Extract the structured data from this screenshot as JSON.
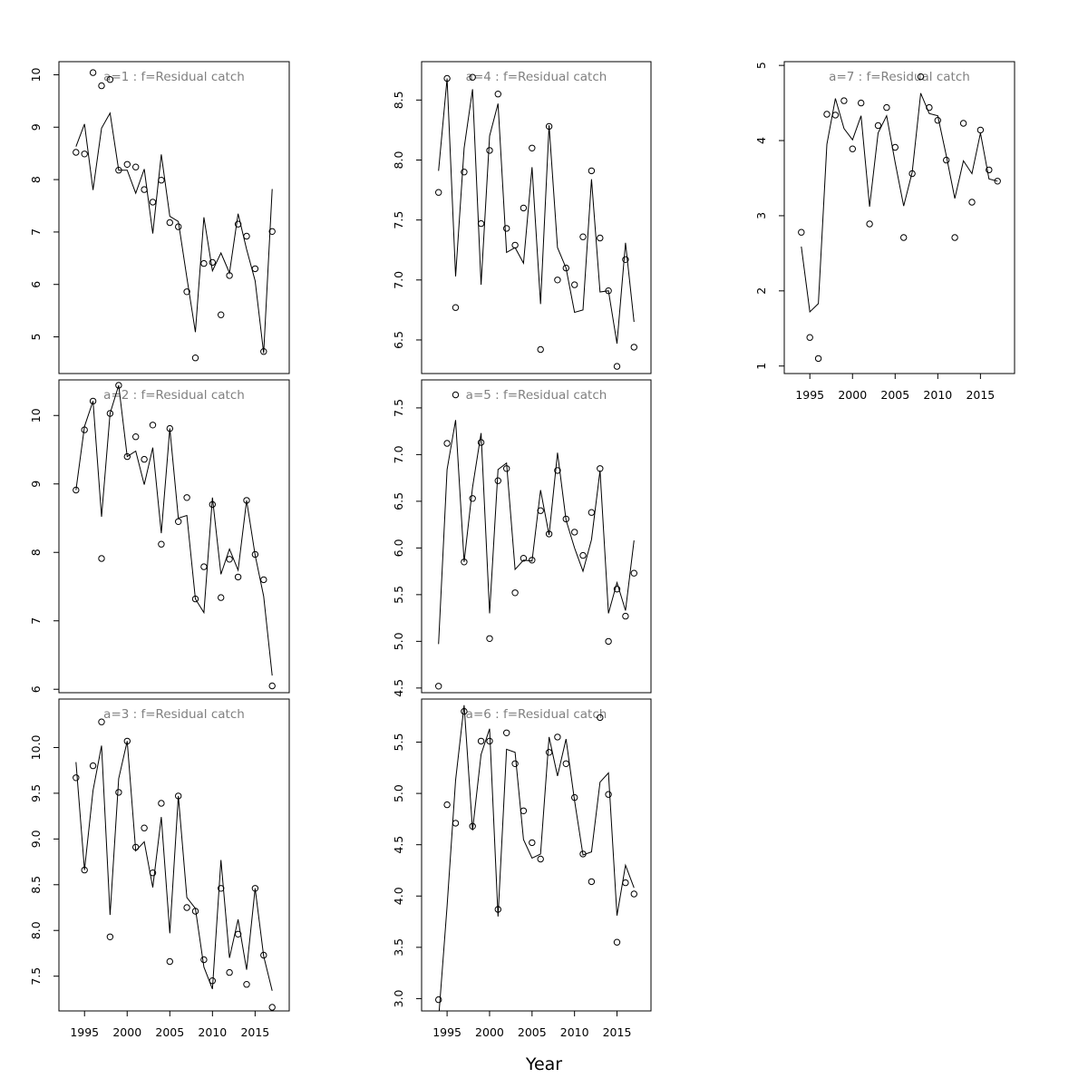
{
  "figure": {
    "xlabel": "Year",
    "colors": {
      "title": "#808080",
      "ink": "#000000",
      "background": "#ffffff"
    }
  },
  "chart_data": [
    {
      "type": "scatter+line",
      "title": "a=1  :  f=Residual catch",
      "x": [
        1994,
        1995,
        1996,
        1997,
        1998,
        1999,
        2000,
        2001,
        2002,
        2003,
        2004,
        2005,
        2006,
        2007,
        2008,
        2009,
        2010,
        2011,
        2012,
        2013,
        2014,
        2015,
        2016,
        2017
      ],
      "observed": [
        8.52,
        8.49,
        10.04,
        9.79,
        9.91,
        8.18,
        8.29,
        8.24,
        7.81,
        7.57,
        7.99,
        7.18,
        7.1,
        5.86,
        4.6,
        6.4,
        6.42,
        5.42,
        6.17,
        7.15,
        6.92,
        6.3,
        4.72,
        7.01
      ],
      "fitted": [
        8.63,
        9.06,
        7.8,
        8.98,
        9.27,
        8.18,
        8.18,
        7.74,
        8.2,
        6.97,
        8.48,
        7.3,
        7.2,
        6.13,
        5.09,
        7.28,
        6.26,
        6.6,
        6.22,
        7.35,
        6.67,
        6.07,
        4.69,
        7.82
      ],
      "ylim": [
        4.3,
        10.25
      ],
      "yticks": [
        5,
        6,
        7,
        8,
        9,
        10
      ],
      "show_xaxis": false
    },
    {
      "type": "scatter+line",
      "title": "a=2  :  f=Residual catch",
      "x": [
        1994,
        1995,
        1996,
        1997,
        1998,
        1999,
        2000,
        2001,
        2002,
        2003,
        2004,
        2005,
        2006,
        2007,
        2008,
        2009,
        2010,
        2011,
        2012,
        2013,
        2014,
        2015,
        2016,
        2017
      ],
      "observed": [
        8.91,
        9.79,
        10.21,
        7.91,
        10.03,
        10.44,
        9.4,
        9.69,
        9.36,
        9.86,
        8.12,
        9.81,
        8.45,
        8.8,
        7.32,
        7.79,
        8.7,
        7.34,
        7.9,
        7.64,
        8.76,
        7.97,
        7.6,
        6.05
      ],
      "fitted": [
        8.91,
        9.84,
        10.21,
        8.52,
        10.03,
        10.44,
        9.4,
        9.48,
        8.99,
        9.53,
        8.28,
        9.81,
        8.5,
        8.54,
        7.32,
        7.12,
        8.8,
        7.68,
        8.05,
        7.74,
        8.76,
        7.96,
        7.36,
        6.2
      ],
      "ylim": [
        5.95,
        10.52
      ],
      "yticks": [
        6,
        7,
        8,
        9,
        10
      ],
      "show_xaxis": false
    },
    {
      "type": "scatter+line",
      "title": "a=3  :  f=Residual catch",
      "x": [
        1994,
        1995,
        1996,
        1997,
        1998,
        1999,
        2000,
        2001,
        2002,
        2003,
        2004,
        2005,
        2006,
        2007,
        2008,
        2009,
        2010,
        2011,
        2012,
        2013,
        2014,
        2015,
        2016,
        2017
      ],
      "observed": [
        9.67,
        8.66,
        9.8,
        10.28,
        7.93,
        9.51,
        10.07,
        8.91,
        9.12,
        8.63,
        9.39,
        7.66,
        9.47,
        8.25,
        8.21,
        7.68,
        7.45,
        8.46,
        7.54,
        7.96,
        7.41,
        8.46,
        7.73,
        7.16
      ],
      "fitted": [
        9.84,
        8.66,
        9.53,
        10.02,
        8.17,
        9.66,
        10.07,
        8.87,
        8.97,
        8.47,
        9.24,
        7.97,
        9.47,
        8.36,
        8.24,
        7.6,
        7.36,
        8.77,
        7.7,
        8.12,
        7.57,
        8.46,
        7.72,
        7.34
      ],
      "ylim": [
        7.12,
        10.53
      ],
      "yticks": [
        7.5,
        8.0,
        8.5,
        9.0,
        9.5,
        10.0
      ],
      "show_xaxis": true
    },
    {
      "type": "scatter+line",
      "title": "a=4  :  f=Residual catch",
      "x": [
        1994,
        1995,
        1996,
        1997,
        1998,
        1999,
        2000,
        2001,
        2002,
        2003,
        2004,
        2005,
        2006,
        2007,
        2008,
        2009,
        2010,
        2011,
        2012,
        2013,
        2014,
        2015,
        2016,
        2017
      ],
      "observed": [
        7.73,
        8.68,
        6.77,
        7.9,
        8.69,
        7.47,
        8.08,
        8.55,
        7.43,
        7.29,
        7.6,
        8.1,
        6.42,
        8.28,
        7.0,
        7.1,
        6.96,
        7.36,
        7.91,
        7.35,
        6.91,
        6.28,
        7.17,
        6.44
      ],
      "fitted": [
        7.91,
        8.68,
        7.03,
        8.1,
        8.59,
        6.96,
        8.2,
        8.47,
        7.23,
        7.27,
        7.14,
        7.94,
        6.8,
        8.29,
        7.27,
        7.1,
        6.73,
        6.75,
        7.84,
        6.9,
        6.91,
        6.47,
        7.31,
        6.65
      ],
      "ylim": [
        6.22,
        8.82
      ],
      "yticks": [
        6.5,
        7.0,
        7.5,
        8.0,
        8.5
      ],
      "show_xaxis": false
    },
    {
      "type": "scatter+line",
      "title": "a=5  :  f=Residual catch",
      "x": [
        1994,
        1995,
        1996,
        1997,
        1998,
        1999,
        2000,
        2001,
        2002,
        2003,
        2004,
        2005,
        2006,
        2007,
        2008,
        2009,
        2010,
        2011,
        2012,
        2013,
        2014,
        2015,
        2016,
        2017
      ],
      "observed": [
        4.52,
        7.12,
        7.64,
        5.85,
        6.53,
        7.13,
        5.03,
        6.72,
        6.85,
        5.52,
        5.89,
        5.87,
        6.4,
        6.15,
        6.83,
        6.31,
        6.17,
        5.92,
        6.38,
        6.85,
        5.0,
        5.56,
        5.27,
        5.73
      ],
      "fitted": [
        4.97,
        6.84,
        7.37,
        5.85,
        6.65,
        7.23,
        5.3,
        6.84,
        6.91,
        5.77,
        5.87,
        5.86,
        6.62,
        6.14,
        7.02,
        6.3,
        6.0,
        5.75,
        6.09,
        6.83,
        5.3,
        5.63,
        5.33,
        6.08
      ],
      "ylim": [
        4.45,
        7.8
      ],
      "yticks": [
        4.5,
        5.0,
        5.5,
        6.0,
        6.5,
        7.0,
        7.5
      ],
      "show_xaxis": false
    },
    {
      "type": "scatter+line",
      "title": "a=6  :  f=Residual catch",
      "x": [
        1994,
        1995,
        1996,
        1997,
        1998,
        1999,
        2000,
        2001,
        2002,
        2003,
        2004,
        2005,
        2006,
        2007,
        2008,
        2009,
        2010,
        2011,
        2012,
        2013,
        2014,
        2015,
        2016,
        2017
      ],
      "observed": [
        2.99,
        4.89,
        4.71,
        5.8,
        4.68,
        5.51,
        5.51,
        3.87,
        5.59,
        5.29,
        4.83,
        4.52,
        4.36,
        5.4,
        5.55,
        5.29,
        4.96,
        4.41,
        4.14,
        5.74,
        4.99,
        3.55,
        4.13,
        4.02
      ],
      "fitted": [
        2.8,
        3.9,
        5.13,
        5.86,
        4.64,
        5.38,
        5.63,
        3.8,
        5.43,
        5.4,
        4.55,
        4.37,
        4.41,
        5.55,
        5.17,
        5.53,
        4.93,
        4.4,
        4.43,
        5.11,
        5.2,
        3.81,
        4.3,
        4.08
      ],
      "ylim": [
        2.88,
        5.92
      ],
      "yticks": [
        3.0,
        3.5,
        4.0,
        4.5,
        5.0,
        5.5
      ],
      "show_xaxis": true
    },
    {
      "type": "scatter+line",
      "title": "a=7  :  f=Residual catch",
      "x": [
        1994,
        1995,
        1996,
        1997,
        1998,
        1999,
        2000,
        2001,
        2002,
        2003,
        2004,
        2005,
        2006,
        2007,
        2008,
        2009,
        2010,
        2011,
        2012,
        2013,
        2014,
        2015,
        2016,
        2017
      ],
      "observed": [
        2.78,
        1.38,
        1.1,
        4.35,
        4.34,
        4.53,
        3.89,
        4.5,
        2.89,
        4.2,
        4.44,
        3.91,
        2.71,
        3.56,
        4.85,
        4.44,
        4.27,
        3.74,
        2.71,
        4.23,
        3.18,
        4.14,
        3.61,
        3.46
      ],
      "fitted": [
        2.59,
        1.72,
        1.83,
        3.95,
        4.56,
        4.16,
        4.01,
        4.33,
        3.12,
        4.1,
        4.33,
        3.71,
        3.13,
        3.58,
        4.63,
        4.36,
        4.33,
        3.8,
        3.23,
        3.73,
        3.56,
        4.1,
        3.49,
        3.46
      ],
      "ylim": [
        0.9,
        5.05
      ],
      "yticks": [
        1,
        2,
        3,
        4,
        5
      ],
      "show_xaxis": true
    }
  ],
  "xaxis": {
    "xlim": [
      1992.0,
      2019.0
    ],
    "xticks": [
      1995,
      2000,
      2005,
      2010,
      2015
    ]
  }
}
